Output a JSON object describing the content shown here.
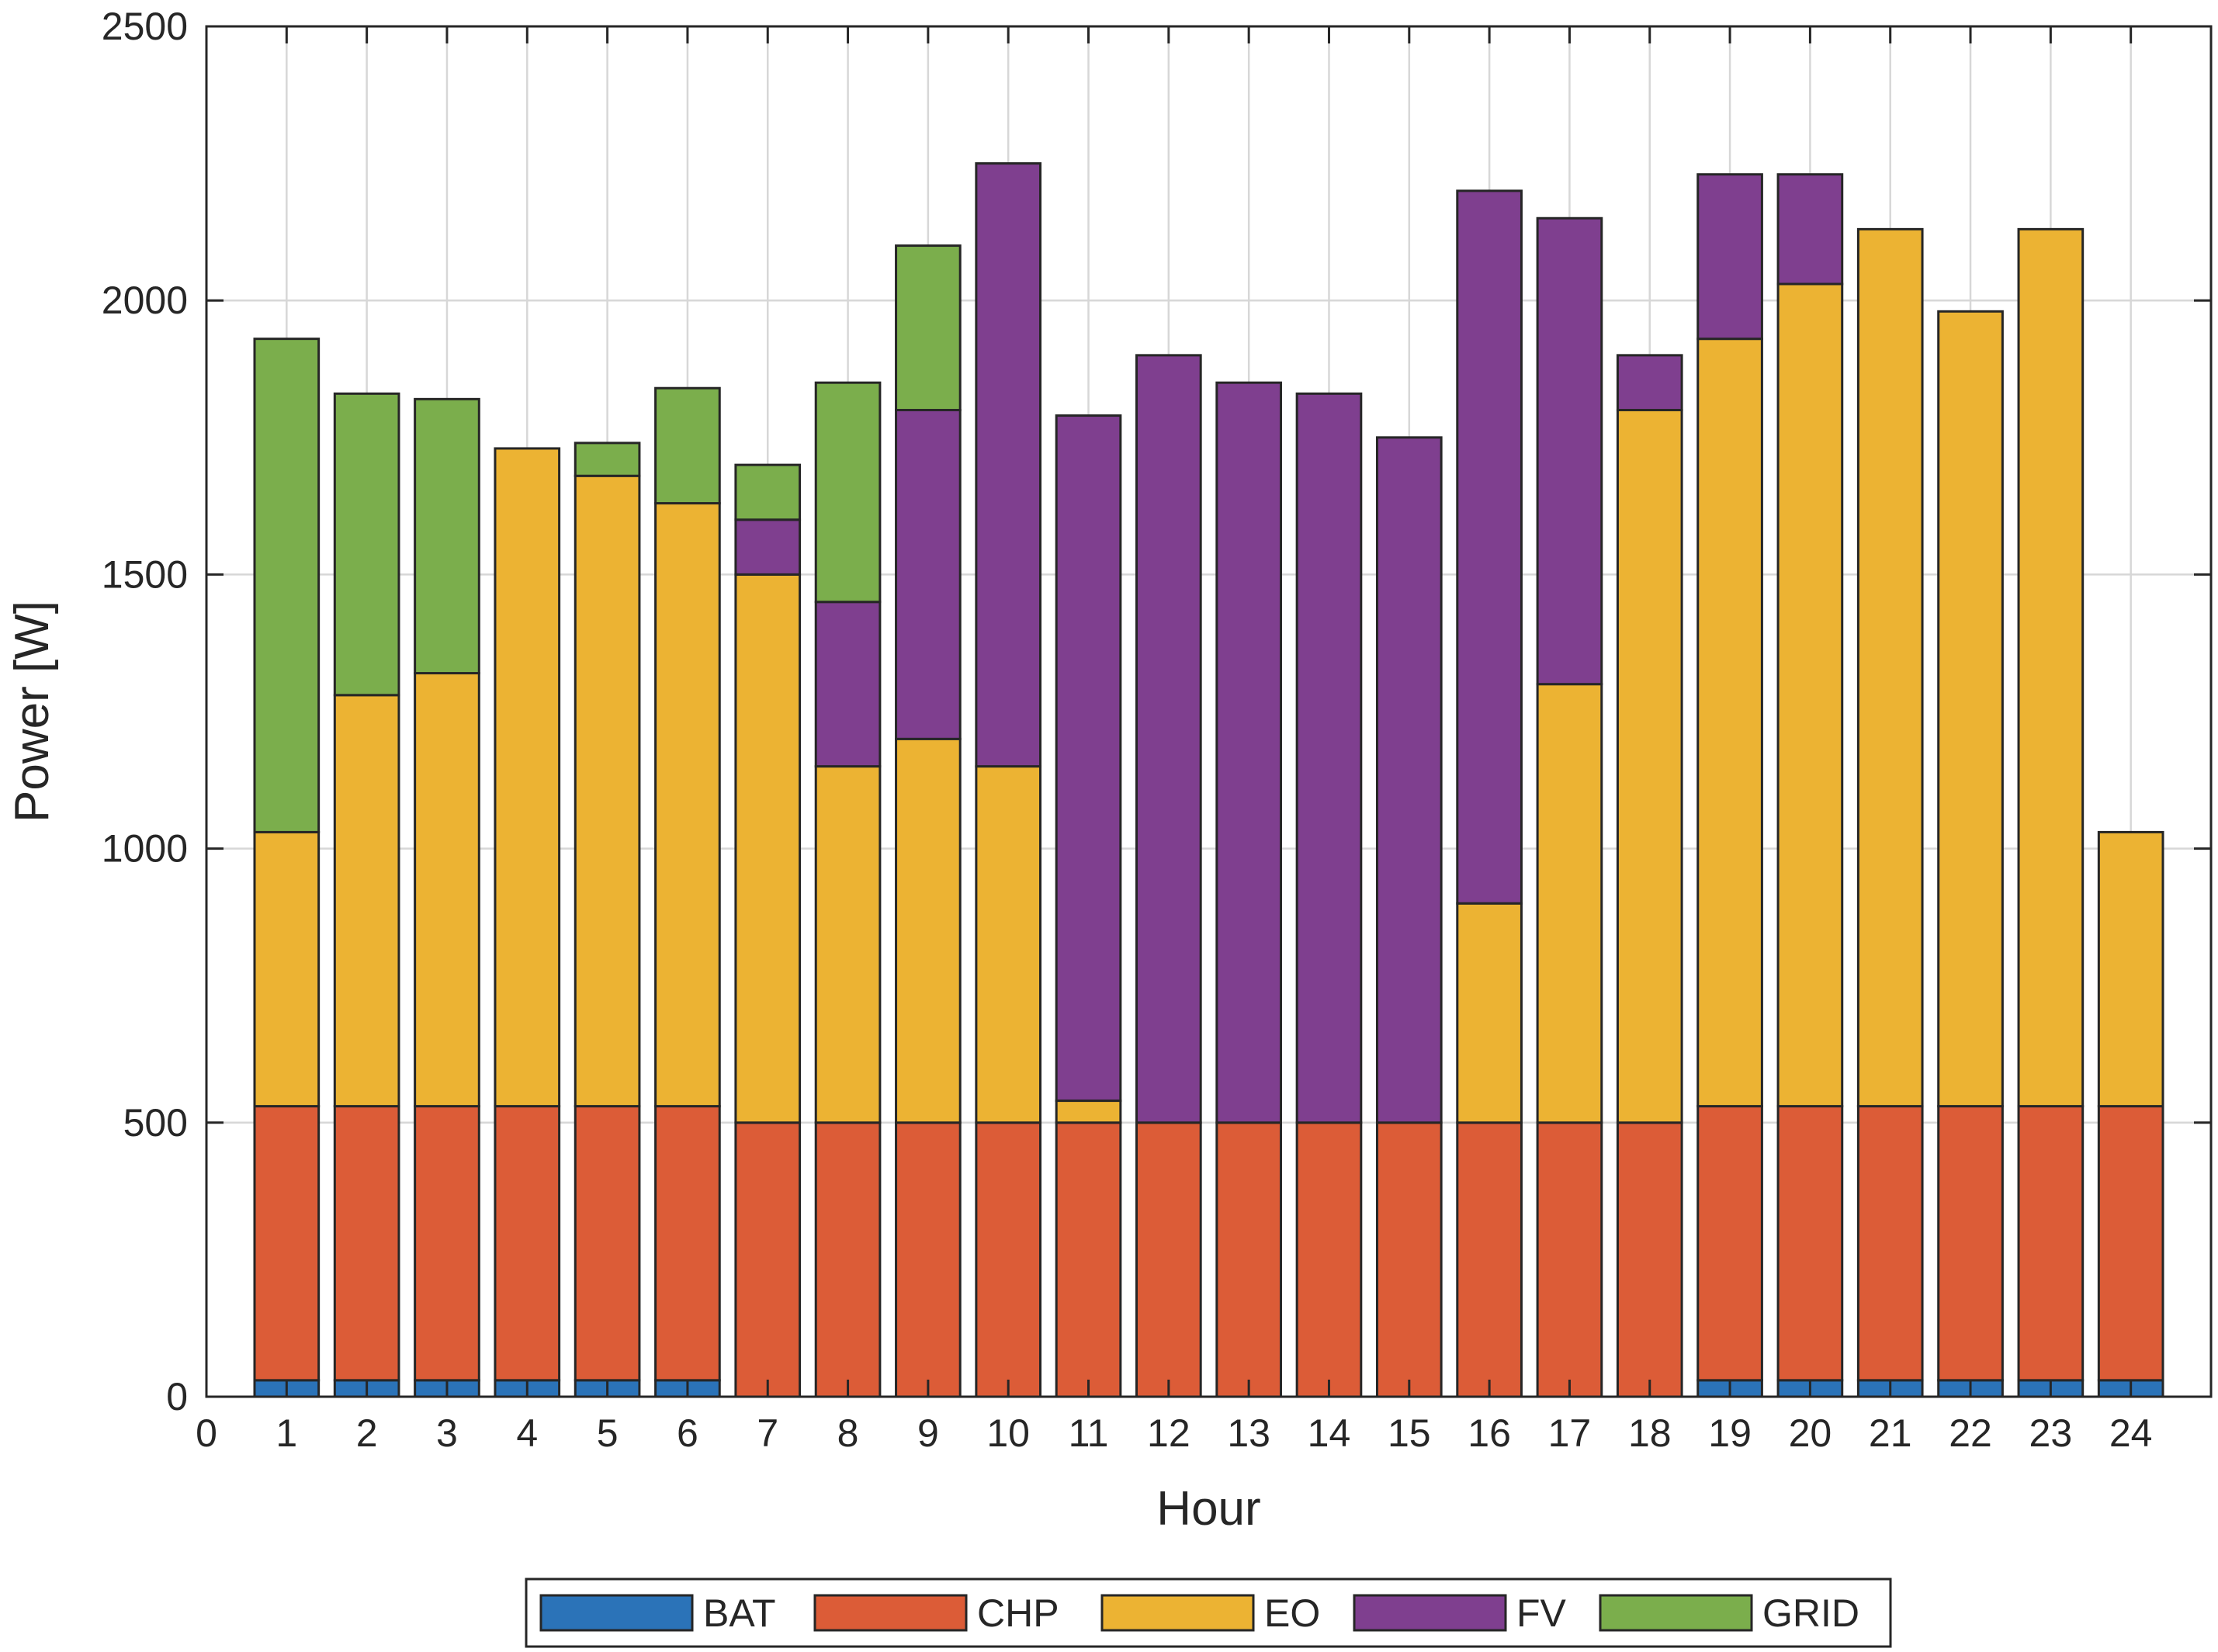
{
  "chart_data": {
    "type": "bar",
    "stacked": true,
    "title": "",
    "xlabel": "Hour",
    "ylabel": "Power [W]",
    "xlim": [
      0,
      25
    ],
    "ylim": [
      0,
      2500
    ],
    "xticks": [
      0,
      1,
      2,
      3,
      4,
      5,
      6,
      7,
      8,
      9,
      10,
      11,
      12,
      13,
      14,
      15,
      16,
      17,
      18,
      19,
      20,
      21,
      22,
      23,
      24
    ],
    "yticks": [
      0,
      500,
      1000,
      1500,
      2000,
      2500
    ],
    "grid": true,
    "legend_position": "bottom-outside",
    "categories": [
      1,
      2,
      3,
      4,
      5,
      6,
      7,
      8,
      9,
      10,
      11,
      12,
      13,
      14,
      15,
      16,
      17,
      18,
      19,
      20,
      21,
      22,
      23,
      24
    ],
    "series": [
      {
        "name": "BAT",
        "color": "#2b73b8",
        "values": [
          30,
          30,
          30,
          30,
          30,
          30,
          0,
          0,
          0,
          0,
          0,
          0,
          0,
          0,
          0,
          0,
          0,
          0,
          30,
          30,
          30,
          30,
          30,
          30
        ]
      },
      {
        "name": "CHP",
        "color": "#dc5c37",
        "values": [
          500,
          500,
          500,
          500,
          500,
          500,
          500,
          500,
          500,
          500,
          500,
          500,
          500,
          500,
          500,
          500,
          500,
          500,
          500,
          500,
          500,
          500,
          500,
          500
        ]
      },
      {
        "name": "EO",
        "color": "#ecb333",
        "values": [
          500,
          750,
          790,
          1200,
          1150,
          1100,
          1000,
          650,
          700,
          650,
          40,
          0,
          0,
          0,
          0,
          400,
          800,
          1300,
          1400,
          1500,
          1600,
          1450,
          1600,
          500
        ]
      },
      {
        "name": "FV",
        "color": "#7f3f8f",
        "values": [
          0,
          0,
          0,
          0,
          0,
          0,
          100,
          300,
          600,
          1100,
          1250,
          1400,
          1350,
          1330,
          1250,
          1300,
          850,
          100,
          300,
          200,
          0,
          0,
          0,
          0
        ]
      },
      {
        "name": "GRID",
        "color": "#7bae4c",
        "values": [
          900,
          550,
          500,
          0,
          60,
          210,
          100,
          400,
          300,
          0,
          0,
          0,
          0,
          0,
          0,
          0,
          0,
          0,
          0,
          0,
          0,
          0,
          0,
          0
        ]
      }
    ]
  }
}
